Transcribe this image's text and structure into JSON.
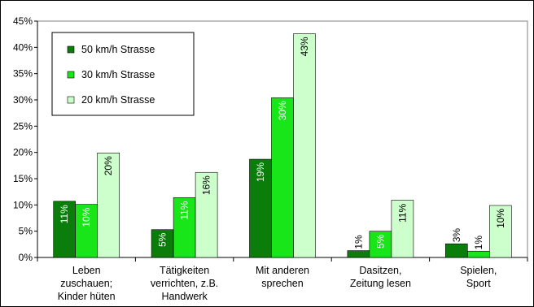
{
  "chart_data": {
    "type": "bar",
    "title": "",
    "xlabel": "",
    "ylabel": "",
    "ylim": [
      0,
      0.45
    ],
    "yticks": [
      "0%",
      "5%",
      "10%",
      "15%",
      "20%",
      "25%",
      "30%",
      "35%",
      "40%",
      "45%"
    ],
    "grid": false,
    "legend_position": "top-left",
    "categories": [
      [
        "Leben",
        "zuschauen;",
        "Kinder hüten"
      ],
      [
        "Tätigkeiten",
        "verrichten, z.B.",
        "Handwerk"
      ],
      [
        "Mit anderen",
        "sprechen"
      ],
      [
        "Dasitzen,",
        "Zeitung lesen"
      ],
      [
        "Spielen,",
        "Sport"
      ]
    ],
    "series": [
      {
        "name": "50 km/h Strasse",
        "color": "#0a7d0a",
        "values": [
          0.107,
          0.053,
          0.187,
          0.013,
          0.026
        ],
        "labels": [
          "11%",
          "5%",
          "19%",
          "1%",
          "3%"
        ]
      },
      {
        "name": "30 km/h Strasse",
        "color": "#19e619",
        "values": [
          0.101,
          0.114,
          0.304,
          0.05,
          0.012
        ],
        "labels": [
          "10%",
          "11%",
          "30%",
          "5%",
          "1%"
        ]
      },
      {
        "name": "20 km/h Strasse",
        "color": "#ccffcc",
        "values": [
          0.199,
          0.162,
          0.426,
          0.109,
          0.099
        ],
        "labels": [
          "20%",
          "16%",
          "43%",
          "11%",
          "10%"
        ]
      }
    ]
  }
}
